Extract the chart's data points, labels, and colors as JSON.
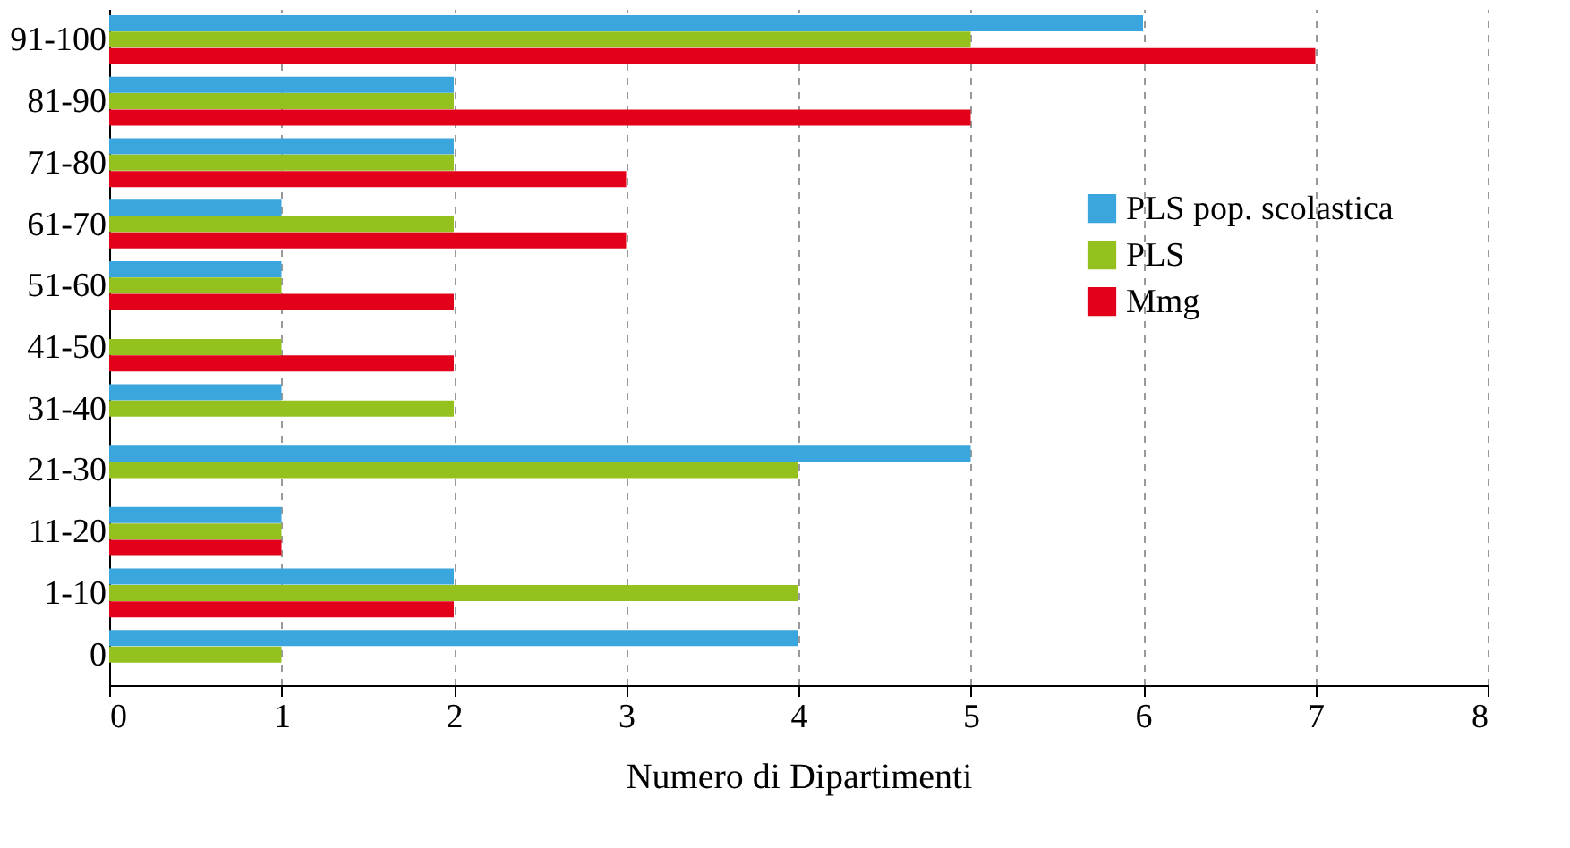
{
  "chart_data": {
    "type": "bar",
    "orientation": "horizontal",
    "xlabel": "Numero di Dipartimenti",
    "categories": [
      "91-100",
      "81-90",
      "71-80",
      "61-70",
      "51-60",
      "41-50",
      "31-40",
      "21-30",
      "11-20",
      "1-10",
      "0"
    ],
    "series": [
      {
        "name": "PLS pop. scolastica",
        "color": "#3aa6dd",
        "values": [
          6,
          2,
          2,
          1,
          1,
          null,
          1,
          5,
          1,
          2,
          4
        ]
      },
      {
        "name": "PLS",
        "color": "#95c11f",
        "values": [
          5,
          2,
          2,
          2,
          1,
          1,
          2,
          4,
          1,
          4,
          1
        ]
      },
      {
        "name": "Mmg",
        "color": "#e2001a",
        "values": [
          7,
          5,
          3,
          3,
          2,
          2,
          null,
          null,
          1,
          2,
          null
        ]
      }
    ],
    "xlim": [
      0,
      8
    ],
    "xticks": [
      0,
      1,
      2,
      3,
      4,
      5,
      6,
      7,
      8
    ],
    "grid": "x",
    "legend": "right"
  }
}
